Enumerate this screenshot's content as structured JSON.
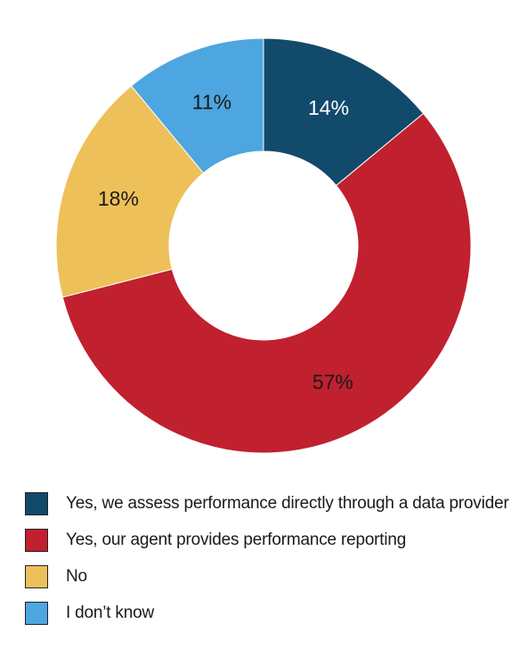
{
  "chart_data": {
    "type": "pie",
    "donut": true,
    "categories": [
      "Yes, we assess performance directly through a data provider",
      "Yes, our agent provides performance reporting",
      "No",
      "I don’t know"
    ],
    "values": [
      14,
      57,
      18,
      11
    ],
    "value_labels": [
      "14%",
      "57%",
      "18%",
      "11%"
    ],
    "colors": [
      "#124A6B",
      "#C1202F",
      "#EEC05A",
      "#4DA6DF"
    ],
    "label_colors": [
      "#ffffff",
      "#1a1a1a",
      "#1a1a1a",
      "#1a1a1a"
    ],
    "legend_position": "bottom-left"
  }
}
